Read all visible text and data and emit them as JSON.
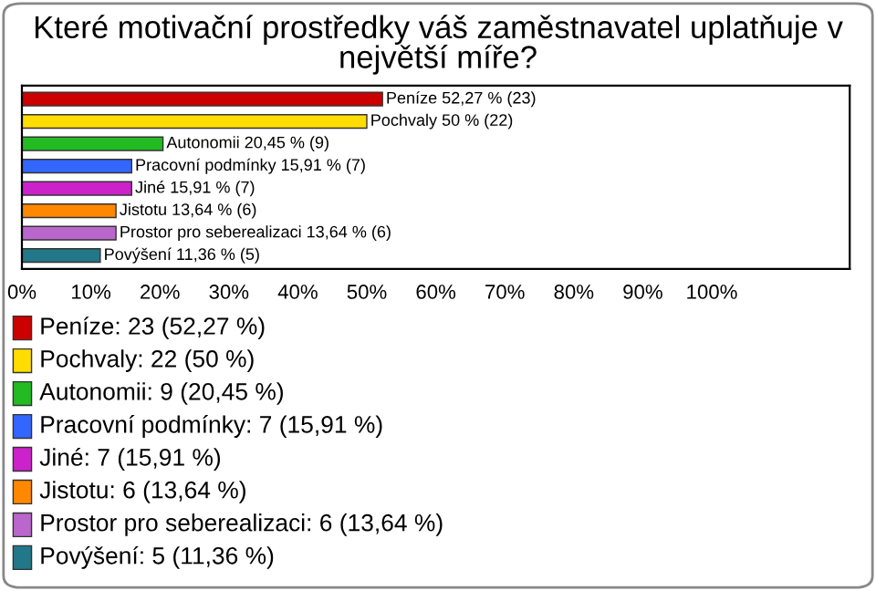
{
  "chart_data": {
    "type": "bar",
    "orientation": "horizontal",
    "title": "Které motivační prostředky váš zaměstnavatel uplatňuje v největší míře?",
    "categories": [
      null,
      null,
      null,
      null,
      null,
      null,
      null,
      null
    ],
    "annotations": [
      "Peníze: 23 (52,27 %)",
      "Pochvaly: 22 (50 %)",
      "Autonomii: 9 (20,45 %)",
      "Pracovní podmínky: 7 (15,91 %)",
      "Jiné: 7 (15,91 %)",
      "Jistotu: 6 (13,64 %)",
      "Prostor pro seberealizaci: 6 (13,64 %)",
      "Povýšení: 5 (11,36 %)"
    ],
    "values": [
      52.27,
      50,
      20.45,
      15.91,
      15.91,
      13.64,
      13.64,
      11.36
    ],
    "colors": [
      "#cc0000",
      "#ffdd00",
      "#22bb22",
      "#3366ff",
      "#cc22cc",
      "#ff8800",
      "#bb66cc",
      "#227788"
    ],
    "value_labels": [
      "Peníze 52,27 % (23)",
      "Pochvaly 50 % (22)",
      "Autonomii 20,45 % (9)",
      "Pracovní podmínky 15,91 % (7)",
      "Jiné 15,91 % (7)",
      "Jistotu 13,64 % (6)",
      "Prostor pro seberealizaci 13,64 % (6)",
      "Povýšení 11,36 % (5)"
    ],
    "xlim": [
      0,
      120
    ],
    "xticks": [
      {
        "value": 0,
        "label": "0%"
      },
      {
        "value": 10,
        "label": "10%"
      },
      {
        "value": 20,
        "label": "20%"
      },
      {
        "value": 30,
        "label": "30%"
      },
      {
        "value": 40,
        "label": "40%"
      },
      {
        "value": 50,
        "label": "50%"
      },
      {
        "value": 60,
        "label": "60%"
      },
      {
        "value": 70,
        "label": "70%"
      },
      {
        "value": 80,
        "label": "80%"
      },
      {
        "value": 90,
        "label": "90%"
      },
      {
        "value": 100,
        "label": "100%"
      }
    ]
  }
}
